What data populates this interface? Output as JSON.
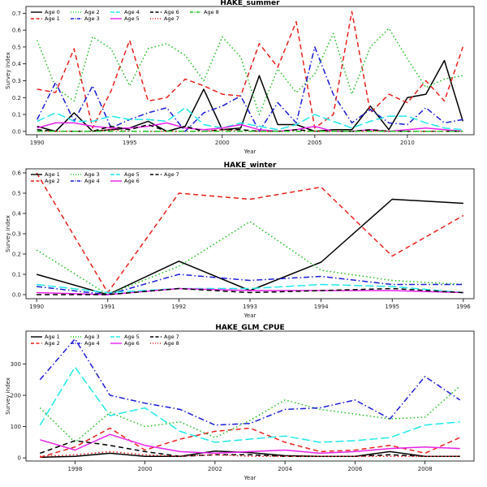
{
  "chart_data": [
    {
      "type": "line",
      "title": "HAKE_summer",
      "xlabel": "Year",
      "ylabel": "Survey index",
      "xlim": [
        1989.4,
        2013.6
      ],
      "ylim": [
        -0.02,
        0.74
      ],
      "xticks": [
        1990,
        1995,
        2000,
        2005,
        2010
      ],
      "yticks": [
        0.0,
        0.1,
        0.2,
        0.3,
        0.4,
        0.5,
        0.6,
        0.7
      ],
      "ytick_labels": [
        "0.0",
        "0.1",
        "0.2",
        "0.3",
        "0.4",
        "0.5",
        "0.6",
        "0.7"
      ],
      "legend": {
        "position": "top-left",
        "columns": 5
      },
      "x": [
        1990,
        1991,
        1992,
        1993,
        1994,
        1995,
        1996,
        1997,
        1998,
        1999,
        2000,
        2001,
        2002,
        2003,
        2004,
        2005,
        2006,
        2007,
        2008,
        2009,
        2010,
        2011,
        2012,
        2013
      ],
      "series": [
        {
          "name": "Age 0",
          "color": "#000000",
          "dash": "solid",
          "values": [
            0.03,
            0.0,
            0.11,
            0.0,
            0.01,
            0.02,
            0.06,
            0.0,
            0.03,
            0.25,
            0.01,
            0.02,
            0.33,
            0.04,
            0.04,
            0.0,
            0.01,
            0.01,
            0.15,
            0.01,
            0.2,
            0.22,
            0.42,
            0.06
          ]
        },
        {
          "name": "Age 1",
          "color": "#e8201c",
          "dash": "long",
          "values": [
            0.25,
            0.23,
            0.49,
            0.02,
            0.24,
            0.54,
            0.18,
            0.2,
            0.31,
            0.27,
            0.22,
            0.21,
            0.52,
            0.38,
            0.65,
            0.02,
            0.1,
            0.71,
            0.11,
            0.22,
            0.17,
            0.3,
            0.18,
            0.5
          ]
        },
        {
          "name": "Age 2",
          "color": "#1fbf1f",
          "dash": "dot",
          "values": [
            0.54,
            0.26,
            0.18,
            0.56,
            0.49,
            0.27,
            0.49,
            0.52,
            0.45,
            0.3,
            0.56,
            0.44,
            0.1,
            0.37,
            0.23,
            0.34,
            0.58,
            0.22,
            0.5,
            0.61,
            0.43,
            0.26,
            0.31,
            0.33
          ]
        },
        {
          "name": "Age 3",
          "color": "#1c1cd8",
          "dash": "dashdot",
          "values": [
            0.07,
            0.29,
            0.06,
            0.27,
            0.02,
            0.07,
            0.11,
            0.14,
            0.0,
            0.11,
            0.15,
            0.21,
            0.0,
            0.17,
            0.05,
            0.5,
            0.22,
            0.05,
            0.13,
            0.05,
            0.04,
            0.14,
            0.05,
            0.07
          ]
        },
        {
          "name": "Age 4",
          "color": "#22e8e8",
          "dash": "longdash",
          "values": [
            0.06,
            0.11,
            0.06,
            0.06,
            0.09,
            0.07,
            0.07,
            0.06,
            0.14,
            0.04,
            0.02,
            0.05,
            0.03,
            0.01,
            0.04,
            0.1,
            0.06,
            0.02,
            0.06,
            0.09,
            0.09,
            0.05,
            0.02,
            0.01
          ]
        },
        {
          "name": "Age 5",
          "color": "#e822e8",
          "dash": "solid",
          "values": [
            0.02,
            0.05,
            0.05,
            0.03,
            0.02,
            0.02,
            0.03,
            0.05,
            0.02,
            0.01,
            0.02,
            0.04,
            0.01,
            0.0,
            0.01,
            0.03,
            0.0,
            0.0,
            0.01,
            0.0,
            0.01,
            0.02,
            0.01,
            0.0
          ]
        },
        {
          "name": "Age 6",
          "color": "#000000",
          "dash": "long",
          "values": [
            0.01,
            0.0,
            0.0,
            0.0,
            0.03,
            0.01,
            0.04,
            0.0,
            0.03,
            0.0,
            0.01,
            0.01,
            0.0,
            0.0,
            0.01,
            0.0,
            0.0,
            0.0,
            0.01,
            0.0,
            0.0,
            0.0,
            0.0,
            0.0
          ]
        },
        {
          "name": "Age 7",
          "color": "#e8201c",
          "dash": "dot",
          "values": [
            0.0,
            0.0,
            0.0,
            0.0,
            0.01,
            0.0,
            0.0,
            0.0,
            0.0,
            0.0,
            0.01,
            0.0,
            0.0,
            0.0,
            0.0,
            0.0,
            0.0,
            0.0,
            0.0,
            0.0,
            0.0,
            0.0,
            0.0,
            0.0
          ]
        },
        {
          "name": "Age 8",
          "color": "#1fbf1f",
          "dash": "dashdot",
          "values": [
            0.0,
            0.0,
            0.0,
            0.0,
            0.0,
            0.0,
            0.0,
            0.0,
            0.0,
            0.0,
            0.0,
            0.0,
            0.0,
            0.0,
            0.0,
            0.0,
            0.0,
            0.0,
            0.0,
            0.0,
            0.0,
            0.0,
            0.0,
            0.0
          ]
        }
      ]
    },
    {
      "type": "line",
      "title": "HAKE_winter",
      "xlabel": "Year",
      "ylabel": "Survey index",
      "xlim": [
        1989.85,
        1996.15
      ],
      "ylim": [
        -0.02,
        0.62
      ],
      "xticks": [
        1990,
        1991,
        1992,
        1993,
        1994,
        1995,
        1996
      ],
      "yticks": [
        0.0,
        0.1,
        0.2,
        0.3,
        0.4,
        0.5,
        0.6
      ],
      "ytick_labels": [
        "0.0",
        "0.1",
        "0.2",
        "0.3",
        "0.4",
        "0.5",
        "0.6"
      ],
      "legend": {
        "position": "top-left",
        "columns": 4
      },
      "x": [
        1990,
        1991,
        1992,
        1993,
        1994,
        1995,
        1996
      ],
      "series": [
        {
          "name": "Age 1",
          "color": "#000000",
          "dash": "solid",
          "values": [
            0.1,
            0.0,
            0.165,
            0.02,
            0.16,
            0.47,
            0.45
          ]
        },
        {
          "name": "Age 2",
          "color": "#e8201c",
          "dash": "long",
          "values": [
            0.6,
            0.01,
            0.5,
            0.47,
            0.53,
            0.19,
            0.39
          ]
        },
        {
          "name": "Age 3",
          "color": "#1fbf1f",
          "dash": "dot",
          "values": [
            0.22,
            0.0,
            0.14,
            0.36,
            0.12,
            0.07,
            0.05
          ]
        },
        {
          "name": "Age 4",
          "color": "#1c1cd8",
          "dash": "dashdot",
          "values": [
            0.04,
            0.0,
            0.1,
            0.07,
            0.09,
            0.05,
            0.05
          ]
        },
        {
          "name": "Age 5",
          "color": "#22e8e8",
          "dash": "longdash",
          "values": [
            0.05,
            0.01,
            0.03,
            0.03,
            0.05,
            0.04,
            0.01
          ]
        },
        {
          "name": "Age 6",
          "color": "#e822e8",
          "dash": "solid",
          "values": [
            0.01,
            0.0,
            0.03,
            0.02,
            0.02,
            0.02,
            0.01
          ]
        },
        {
          "name": "Age 7",
          "color": "#000000",
          "dash": "long",
          "values": [
            0.0,
            0.0,
            0.03,
            0.01,
            0.02,
            0.03,
            0.01
          ]
        }
      ]
    },
    {
      "type": "line",
      "title": "HAKE_GLM_CPUE",
      "xlabel": "Year",
      "ylabel": "Survey index",
      "xlim": [
        1996.6,
        2009.4
      ],
      "ylim": [
        -10,
        405
      ],
      "xticks": [
        1998,
        2000,
        2002,
        2004,
        2006,
        2008
      ],
      "yticks": [
        0,
        100,
        200,
        300
      ],
      "ytick_labels": [
        "0",
        "100",
        "200",
        "300"
      ],
      "legend": {
        "position": "top-left",
        "columns": 4
      },
      "x": [
        1997,
        1998,
        1999,
        2000,
        2001,
        2002,
        2003,
        2004,
        2005,
        2006,
        2007,
        2008,
        2009
      ],
      "series": [
        {
          "name": "Age 1",
          "color": "#000000",
          "dash": "solid",
          "values": [
            2,
            5,
            15,
            5,
            5,
            22,
            17,
            7,
            5,
            5,
            20,
            5,
            5
          ]
        },
        {
          "name": "Age 2",
          "color": "#e8201c",
          "dash": "long",
          "values": [
            2,
            35,
            95,
            25,
            60,
            85,
            95,
            50,
            20,
            25,
            40,
            15,
            65
          ]
        },
        {
          "name": "Age 3",
          "color": "#1fbf1f",
          "dash": "dot",
          "values": [
            160,
            50,
            145,
            100,
            115,
            65,
            120,
            185,
            155,
            140,
            125,
            130,
            230
          ]
        },
        {
          "name": "Age 4",
          "color": "#1c1cd8",
          "dash": "dashdot",
          "values": [
            250,
            380,
            200,
            175,
            155,
            105,
            110,
            155,
            160,
            185,
            125,
            260,
            185
          ]
        },
        {
          "name": "Age 5",
          "color": "#22e8e8",
          "dash": "longdash",
          "values": [
            105,
            290,
            135,
            160,
            85,
            50,
            60,
            70,
            50,
            55,
            65,
            105,
            115
          ]
        },
        {
          "name": "Age 6",
          "color": "#e822e8",
          "dash": "solid",
          "values": [
            58,
            25,
            75,
            40,
            20,
            15,
            20,
            25,
            15,
            20,
            30,
            35,
            30
          ]
        },
        {
          "name": "Age 7",
          "color": "#000000",
          "dash": "long",
          "values": [
            15,
            55,
            40,
            20,
            5,
            10,
            10,
            5,
            5,
            5,
            10,
            5,
            5
          ]
        },
        {
          "name": "Age 8",
          "color": "#e8201c",
          "dash": "dot",
          "values": [
            5,
            10,
            20,
            10,
            5,
            10,
            5,
            5,
            5,
            5,
            5,
            5,
            5
          ]
        }
      ]
    }
  ]
}
